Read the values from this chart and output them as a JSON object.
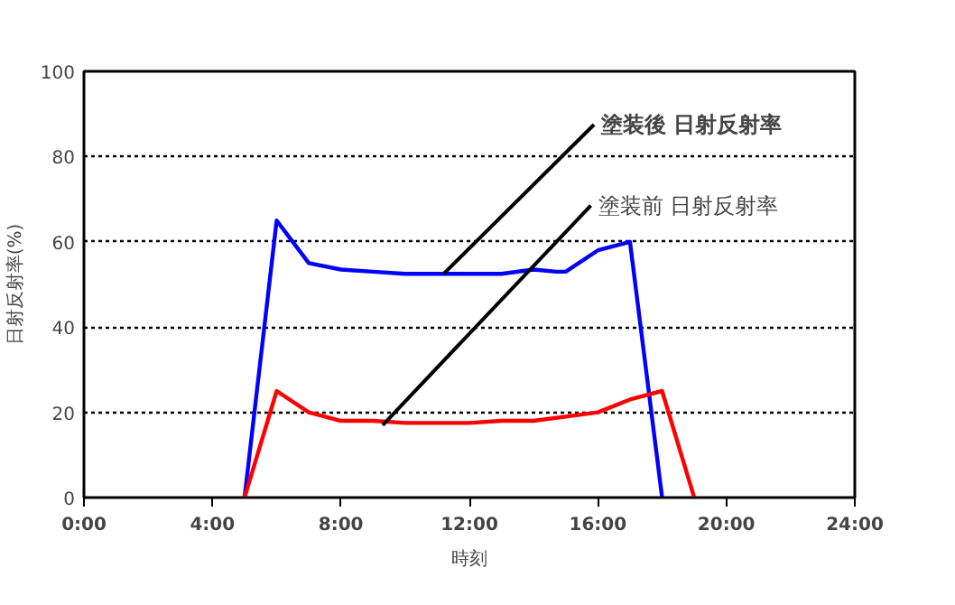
{
  "chart_data": {
    "type": "line",
    "xlabel": "時刻",
    "ylabel": "日射反射率(%)",
    "x": [
      5,
      6,
      7,
      8,
      9,
      10,
      11,
      12,
      13,
      14,
      14.7,
      15,
      16,
      17,
      18
    ],
    "series": [
      {
        "color": "#0000ff",
        "values": [
          0,
          65,
          55,
          53.5,
          53,
          52.5,
          52.5,
          52.5,
          52.5,
          53.5,
          53,
          53,
          58,
          60,
          0
        ]
      },
      {
        "color": "#ff0000",
        "x": [
          5,
          6,
          7,
          8,
          9,
          10,
          11,
          12,
          13,
          14,
          15,
          16,
          17,
          18,
          19
        ],
        "values": [
          0,
          25,
          20,
          18,
          18,
          17.5,
          17.5,
          17.5,
          18,
          18,
          19,
          20,
          23,
          25,
          0
        ]
      }
    ],
    "xlim": [
      0,
      24
    ],
    "ylim": [
      0,
      100
    ],
    "xticks": [
      {
        "value": 0,
        "label": "0:00"
      },
      {
        "value": 4,
        "label": "4:00"
      },
      {
        "value": 8,
        "label": "8:00"
      },
      {
        "value": 12,
        "label": "12:00"
      },
      {
        "value": 16,
        "label": "16:00"
      },
      {
        "value": 20,
        "label": "20:00"
      },
      {
        "value": 24,
        "label": "24:00"
      }
    ],
    "yticks": [
      0,
      20,
      40,
      60,
      80,
      100
    ],
    "grid": "y",
    "marker": "none",
    "line_style": "solid",
    "annotations": [
      {
        "text": "塗装後 日射反射率",
        "x": 11.2,
        "y": 52.5
      },
      {
        "text": "塗装前 日射反射率",
        "x": 9.3,
        "y": 17
      }
    ]
  }
}
